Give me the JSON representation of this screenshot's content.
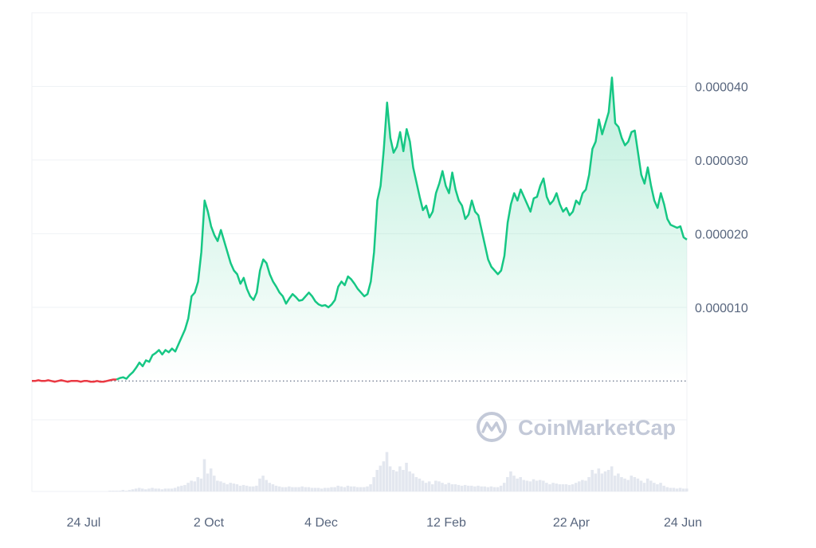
{
  "chart_data": {
    "type": "area",
    "x_ticks": [
      "24 Jul",
      "2 Oct",
      "4 Dec",
      "12 Feb",
      "22 Apr",
      "24 Jun"
    ],
    "y_ticks": [
      "0.000010",
      "0.000020",
      "0.000030",
      "0.000040"
    ],
    "ylim": [
      -1.5e-05,
      5e-05
    ],
    "baseline_value": 0,
    "grid": true,
    "watermark": "CoinMarketCap",
    "colors": {
      "up_line": "#16c784",
      "down_line": "#ea3943",
      "grid": "#eff2f5",
      "axis_text": "#58667e",
      "volume": "#e3e7ef"
    },
    "series": [
      {
        "values": [
          0,
          0,
          1e-07,
          0,
          0,
          1e-07,
          0,
          -1e-07,
          0,
          1e-07,
          0,
          -1e-07,
          0,
          0,
          0,
          -1e-07,
          0,
          0,
          -1e-07,
          -1e-07,
          0,
          -1e-07,
          -1e-07,
          0,
          1e-07,
          2e-07,
          2e-07,
          4e-07,
          5e-07,
          3e-07,
          8e-07,
          1.2e-06,
          1.8e-06,
          2.5e-06,
          2e-06,
          2.8e-06,
          2.6e-06,
          3.5e-06,
          3.8e-06,
          4.2e-06,
          3.6e-06,
          4.2e-06,
          3.9e-06,
          4.4e-06,
          4e-06,
          5e-06,
          6e-06,
          7e-06,
          8.5e-06,
          1.15e-05,
          1.2e-05,
          1.35e-05,
          1.75e-05,
          2.45e-05,
          2.3e-05,
          2.1e-05,
          1.98e-05,
          1.9e-05,
          2.05e-05,
          1.9e-05,
          1.75e-05,
          1.6e-05,
          1.5e-05,
          1.45e-05,
          1.32e-05,
          1.4e-05,
          1.25e-05,
          1.15e-05,
          1.1e-05,
          1.2e-05,
          1.5e-05,
          1.65e-05,
          1.6e-05,
          1.45e-05,
          1.35e-05,
          1.28e-05,
          1.2e-05,
          1.15e-05,
          1.05e-05,
          1.12e-05,
          1.18e-05,
          1.14e-05,
          1.09e-05,
          1.1e-05,
          1.15e-05,
          1.2e-05,
          1.15e-05,
          1.08e-05,
          1.04e-05,
          1.02e-05,
          1.03e-05,
          1e-05,
          1.04e-05,
          1.1e-05,
          1.28e-05,
          1.35e-05,
          1.3e-05,
          1.42e-05,
          1.38e-05,
          1.32e-05,
          1.25e-05,
          1.2e-05,
          1.15e-05,
          1.18e-05,
          1.35e-05,
          1.75e-05,
          2.45e-05,
          2.65e-05,
          3.15e-05,
          3.78e-05,
          3.3e-05,
          3.1e-05,
          3.18e-05,
          3.38e-05,
          3.12e-05,
          3.42e-05,
          3.25e-05,
          2.9e-05,
          2.7e-05,
          2.5e-05,
          2.32e-05,
          2.38e-05,
          2.22e-05,
          2.3e-05,
          2.55e-05,
          2.68e-05,
          2.85e-05,
          2.65e-05,
          2.55e-05,
          2.83e-05,
          2.6e-05,
          2.45e-05,
          2.38e-05,
          2.2e-05,
          2.26e-05,
          2.45e-05,
          2.3e-05,
          2.25e-05,
          2.05e-05,
          1.85e-05,
          1.65e-05,
          1.55e-05,
          1.5e-05,
          1.45e-05,
          1.5e-05,
          1.7e-05,
          2.15e-05,
          2.4e-05,
          2.55e-05,
          2.45e-05,
          2.6e-05,
          2.5e-05,
          2.4e-05,
          2.3e-05,
          2.48e-05,
          2.5e-05,
          2.65e-05,
          2.75e-05,
          2.5e-05,
          2.4e-05,
          2.45e-05,
          2.55e-05,
          2.4e-05,
          2.3e-05,
          2.35e-05,
          2.25e-05,
          2.3e-05,
          2.45e-05,
          2.4e-05,
          2.55e-05,
          2.6e-05,
          2.8e-05,
          3.15e-05,
          3.25e-05,
          3.55e-05,
          3.35e-05,
          3.5e-05,
          3.65e-05,
          4.12e-05,
          3.5e-05,
          3.45e-05,
          3.3e-05,
          3.2e-05,
          3.25e-05,
          3.38e-05,
          3.4e-05,
          3.1e-05,
          2.8e-05,
          2.68e-05,
          2.9e-05,
          2.65e-05,
          2.45e-05,
          2.35e-05,
          2.55e-05,
          2.4e-05,
          2.2e-05,
          2.12e-05,
          2.1e-05,
          2.08e-05,
          2.1e-05,
          1.95e-05,
          1.92e-05
        ],
        "volume": [
          0,
          0,
          0,
          0,
          0,
          0,
          0,
          0,
          0,
          0,
          0,
          0,
          0,
          0,
          0,
          0,
          0,
          0,
          0,
          0,
          0,
          0,
          0,
          0,
          0.01,
          0.01,
          0.01,
          0.01,
          0.02,
          0.01,
          0.02,
          0.03,
          0.04,
          0.05,
          0.04,
          0.03,
          0.04,
          0.05,
          0.04,
          0.04,
          0.03,
          0.04,
          0.04,
          0.04,
          0.05,
          0.07,
          0.08,
          0.09,
          0.12,
          0.15,
          0.14,
          0.2,
          0.18,
          0.45,
          0.25,
          0.32,
          0.22,
          0.15,
          0.14,
          0.12,
          0.1,
          0.12,
          0.11,
          0.1,
          0.08,
          0.09,
          0.08,
          0.07,
          0.07,
          0.08,
          0.18,
          0.22,
          0.16,
          0.12,
          0.1,
          0.08,
          0.07,
          0.06,
          0.06,
          0.07,
          0.06,
          0.06,
          0.06,
          0.07,
          0.06,
          0.06,
          0.05,
          0.05,
          0.05,
          0.04,
          0.05,
          0.05,
          0.06,
          0.06,
          0.08,
          0.07,
          0.06,
          0.08,
          0.07,
          0.07,
          0.06,
          0.06,
          0.06,
          0.07,
          0.1,
          0.2,
          0.3,
          0.36,
          0.42,
          0.55,
          0.35,
          0.3,
          0.28,
          0.35,
          0.3,
          0.4,
          0.28,
          0.25,
          0.2,
          0.18,
          0.15,
          0.12,
          0.14,
          0.1,
          0.15,
          0.14,
          0.12,
          0.1,
          0.12,
          0.1,
          0.1,
          0.09,
          0.08,
          0.09,
          0.08,
          0.08,
          0.07,
          0.08,
          0.07,
          0.07,
          0.06,
          0.07,
          0.06,
          0.06,
          0.08,
          0.12,
          0.2,
          0.28,
          0.22,
          0.18,
          0.2,
          0.16,
          0.15,
          0.14,
          0.17,
          0.15,
          0.16,
          0.15,
          0.12,
          0.1,
          0.12,
          0.11,
          0.1,
          0.1,
          0.1,
          0.09,
          0.1,
          0.12,
          0.14,
          0.16,
          0.15,
          0.2,
          0.3,
          0.25,
          0.32,
          0.25,
          0.28,
          0.3,
          0.35,
          0.22,
          0.25,
          0.2,
          0.18,
          0.16,
          0.22,
          0.2,
          0.18,
          0.15,
          0.12,
          0.18,
          0.15,
          0.12,
          0.1,
          0.12,
          0.08,
          0.06,
          0.05,
          0.05,
          0.04,
          0.05,
          0.04,
          0.04
        ]
      }
    ]
  }
}
